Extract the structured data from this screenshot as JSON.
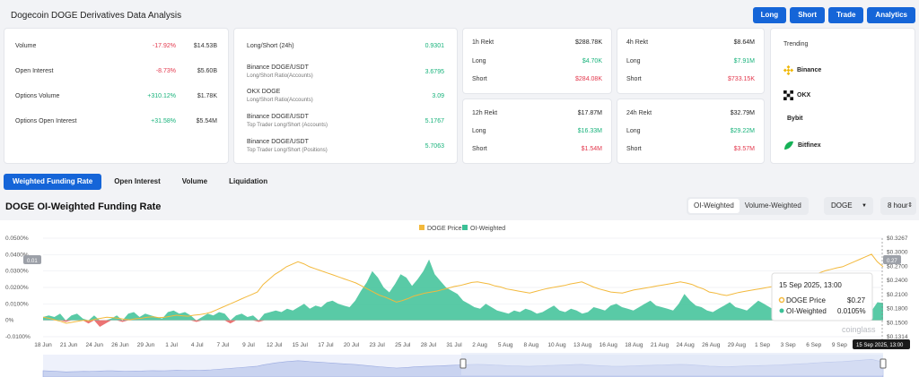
{
  "header": {
    "title": "Dogecoin DOGE Derivatives Data Analysis"
  },
  "buttons": [
    "Long",
    "Short",
    "Trade",
    "Analytics"
  ],
  "summary": [
    {
      "label": "Volume",
      "pct": "-17.92%",
      "pct_dir": "down",
      "value": "$14.53B"
    },
    {
      "label": "Open Interest",
      "pct": "-8.73%",
      "pct_dir": "down",
      "value": "$5.60B"
    },
    {
      "label": "Options Volume",
      "pct": "+310.12%",
      "pct_dir": "up",
      "value": "$1.78K"
    },
    {
      "label": "Options Open Interest",
      "pct": "+31.58%",
      "pct_dir": "up",
      "value": "$5.54M"
    }
  ],
  "long_short": [
    {
      "line1": "Long/Short (24h)",
      "line2": "",
      "value": "0.9301"
    },
    {
      "line1": "Binance DOGE/USDT",
      "line2": "Long/Short Ratio(Accounts)",
      "value": "3.6795"
    },
    {
      "line1": "OKX DOGE",
      "line2": "Long/Short Ratio(Accounts)",
      "value": "3.09"
    },
    {
      "line1": "Binance DOGE/USDT",
      "line2": "Top Trader Long/Short (Accounts)",
      "value": "5.1767"
    },
    {
      "line1": "Binance DOGE/USDT",
      "line2": "Top Trader Long/Short (Positions)",
      "value": "5.7063"
    }
  ],
  "rekt": [
    {
      "period": "1h Rekt",
      "total": "$288.78K",
      "long": "$4.70K",
      "short": "$284.08K"
    },
    {
      "period": "4h Rekt",
      "total": "$8.64M",
      "long": "$7.91M",
      "short": "$733.15K"
    },
    {
      "period": "12h Rekt",
      "total": "$17.87M",
      "long": "$16.33M",
      "short": "$1.54M"
    },
    {
      "period": "24h Rekt",
      "total": "$32.79M",
      "long": "$29.22M",
      "short": "$3.57M"
    }
  ],
  "rekt_labels": {
    "long": "Long",
    "short": "Short"
  },
  "trending": {
    "title": "Trending",
    "items": [
      {
        "name": "Binance",
        "icon": "binance-icon"
      },
      {
        "name": "OKX",
        "icon": "okx-icon"
      },
      {
        "name": "Bybit",
        "icon": "bybit-icon"
      },
      {
        "name": "Bitfinex",
        "icon": "bitfinex-icon"
      }
    ]
  },
  "tabs": [
    "Weighted Funding Rate",
    "Open Interest",
    "Volume",
    "Liquidation"
  ],
  "active_tab": 0,
  "section_title": "DOGE OI-Weighted Funding Rate",
  "controls": {
    "weighting": [
      "OI-Weighted",
      "Volume-Weighted"
    ],
    "coin": "DOGE",
    "interval": "8 hour"
  },
  "colors": {
    "accent": "#1565d8",
    "price": "#f3b93c",
    "funding": "#3cc197",
    "negative": "#e85a5a",
    "up": "#16b27a",
    "down": "#e3384d"
  },
  "chart_data": {
    "type": "area",
    "legend": [
      "DOGE Price",
      "OI-Weighted"
    ],
    "legend_position": "top-center",
    "x_ticks": [
      "18 Jun",
      "21 Jun",
      "24 Jun",
      "26 Jun",
      "29 Jun",
      "1 Jul",
      "4 Jul",
      "7 Jul",
      "9 Jul",
      "12 Jul",
      "15 Jul",
      "17 Jul",
      "20 Jul",
      "23 Jul",
      "25 Jul",
      "28 Jul",
      "31 Jul",
      "2 Aug",
      "5 Aug",
      "8 Aug",
      "10 Aug",
      "13 Aug",
      "16 Aug",
      "18 Aug",
      "21 Aug",
      "24 Aug",
      "26 Aug",
      "29 Aug",
      "1 Sep",
      "3 Sep",
      "6 Sep",
      "9 Sep",
      "11 Sep"
    ],
    "y_left_ticks": [
      "0.0500%",
      "0.0400%",
      "0.0300%",
      "0.0200%",
      "0.0100%",
      "0%",
      "-0.0100%"
    ],
    "y_right_ticks": [
      "$0.3267",
      "$0.3000",
      "$0.2700",
      "$0.2400",
      "$0.2100",
      "$0.1800",
      "$0.1500",
      "$0.1314"
    ],
    "ylim_left": [
      -0.01,
      0.05
    ],
    "ylim_right": [
      0.1314,
      0.3267
    ],
    "left_badge": "0.01",
    "right_badge": "0.27",
    "funding_rate_pct": [
      0.002,
      0.003,
      0.002,
      0.004,
      -0.001,
      0.003,
      0.004,
      0.001,
      -0.002,
      0.003,
      -0.004,
      -0.002,
      0.001,
      0.003,
      -0.001,
      0.004,
      0.005,
      0.002,
      0.004,
      0.003,
      0.002,
      0.001,
      0.005,
      0.006,
      0.004,
      0.005,
      0.003,
      -0.001,
      0.002,
      0.004,
      0.003,
      0.005,
      0.004,
      -0.002,
      0.003,
      0.004,
      0.002,
      0.003,
      -0.001,
      0.004,
      0.005,
      0.006,
      0.005,
      0.007,
      0.006,
      0.008,
      0.01,
      0.007,
      0.009,
      0.008,
      0.011,
      0.012,
      0.01,
      0.009,
      0.008,
      0.012,
      0.018,
      0.023,
      0.03,
      0.026,
      0.02,
      0.017,
      0.022,
      0.028,
      0.026,
      0.021,
      0.025,
      0.03,
      0.037,
      0.028,
      0.024,
      0.02,
      0.018,
      0.016,
      0.012,
      0.01,
      0.008,
      0.007,
      0.01,
      0.008,
      0.006,
      0.005,
      0.004,
      0.006,
      0.005,
      0.007,
      0.006,
      0.004,
      0.005,
      0.007,
      0.009,
      0.006,
      0.005,
      0.007,
      0.006,
      0.004,
      0.005,
      0.008,
      0.007,
      0.006,
      0.009,
      0.01,
      0.008,
      0.007,
      0.006,
      0.008,
      0.01,
      0.012,
      0.009,
      0.008,
      0.007,
      0.006,
      0.01,
      0.016,
      0.012,
      0.009,
      0.008,
      0.006,
      0.005,
      0.007,
      0.009,
      0.011,
      0.008,
      0.007,
      0.006,
      0.009,
      0.012,
      0.01,
      0.008,
      0.006,
      0.005,
      0.007,
      0.008,
      0.006,
      0.005,
      0.004,
      0.006,
      0.008,
      0.009,
      0.007,
      0.006,
      0.005,
      0.007,
      0.01,
      0.009,
      0.008,
      0.006,
      0.011,
      0.0105
    ],
    "price_usd": [
      0.17,
      0.168,
      0.165,
      0.162,
      0.158,
      0.16,
      0.162,
      0.164,
      0.163,
      0.166,
      0.168,
      0.17,
      0.169,
      0.168,
      0.166,
      0.165,
      0.167,
      0.168,
      0.17,
      0.171,
      0.169,
      0.17,
      0.172,
      0.174,
      0.173,
      0.172,
      0.174,
      0.175,
      0.177,
      0.18,
      0.185,
      0.19,
      0.195,
      0.2,
      0.205,
      0.21,
      0.215,
      0.22,
      0.235,
      0.245,
      0.255,
      0.262,
      0.27,
      0.275,
      0.28,
      0.276,
      0.27,
      0.266,
      0.262,
      0.258,
      0.254,
      0.25,
      0.246,
      0.242,
      0.238,
      0.232,
      0.226,
      0.22,
      0.214,
      0.21,
      0.205,
      0.2,
      0.203,
      0.207,
      0.212,
      0.215,
      0.218,
      0.22,
      0.222,
      0.225,
      0.228,
      0.231,
      0.233,
      0.236,
      0.239,
      0.24,
      0.238,
      0.236,
      0.232,
      0.23,
      0.226,
      0.224,
      0.222,
      0.22,
      0.218,
      0.221,
      0.224,
      0.227,
      0.229,
      0.231,
      0.233,
      0.236,
      0.238,
      0.24,
      0.235,
      0.23,
      0.226,
      0.223,
      0.22,
      0.219,
      0.218,
      0.221,
      0.224,
      0.226,
      0.228,
      0.23,
      0.232,
      0.234,
      0.236,
      0.238,
      0.24,
      0.238,
      0.235,
      0.23,
      0.226,
      0.22,
      0.218,
      0.215,
      0.213,
      0.216,
      0.219,
      0.221,
      0.223,
      0.225,
      0.227,
      0.229,
      0.231,
      0.234,
      0.237,
      0.24,
      0.243,
      0.247,
      0.25,
      0.255,
      0.258,
      0.262,
      0.265,
      0.268,
      0.27,
      0.275,
      0.28,
      0.285,
      0.29,
      0.295,
      0.28,
      0.27
    ],
    "tooltip": {
      "date": "15 Sep 2025, 13:00",
      "price_label": "DOGE Price",
      "price": "$0.27",
      "rate_label": "OI-Weighted",
      "rate": "0.0105%"
    },
    "crosshair_label": "15 Sep 2025, 13:00",
    "watermark": "coinglass"
  }
}
